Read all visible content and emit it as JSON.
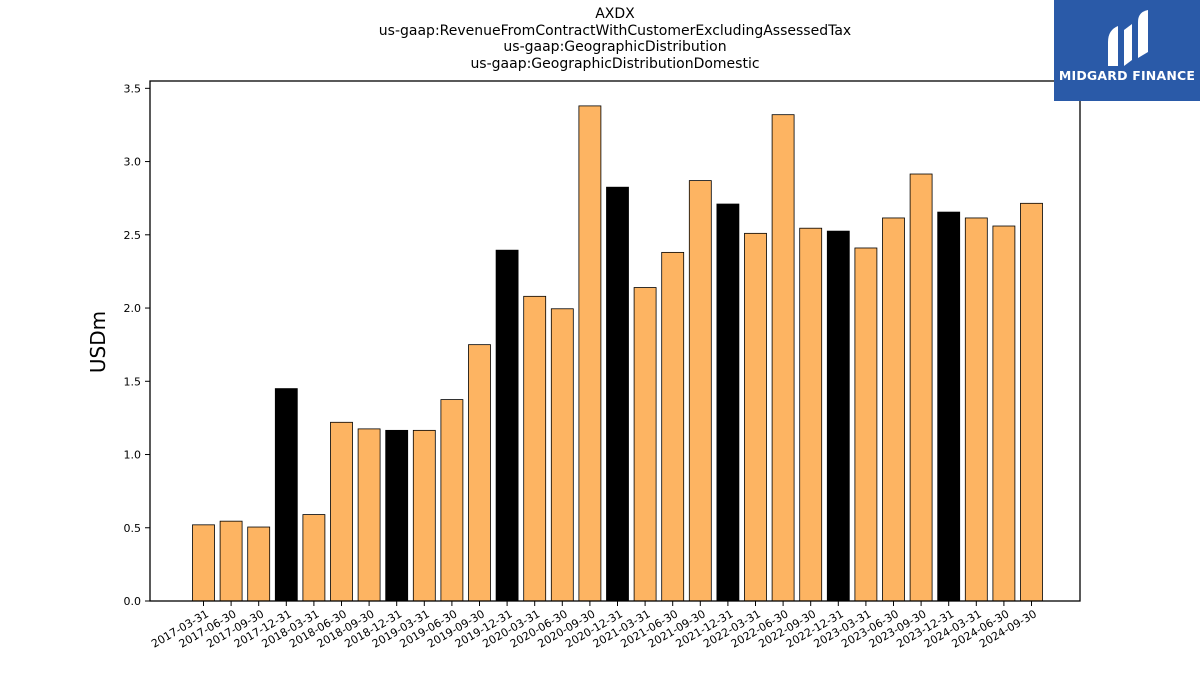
{
  "chart_data": {
    "type": "bar",
    "title": "AXDX",
    "subtitles": [
      "us-gaap:RevenueFromContractWithCustomerExcludingAssessedTax",
      "us-gaap:GeographicDistribution",
      "us-gaap:GeographicDistributionDomestic"
    ],
    "xlabel": "",
    "ylabel": "USDm",
    "ylim": [
      0,
      3.55
    ],
    "yticks": [
      "0.0",
      "0.5",
      "1.0",
      "1.5",
      "2.0",
      "2.5",
      "3.0",
      "3.5"
    ],
    "grid": false,
    "colors": {
      "quarter": "#fdb462",
      "year_end": "#000000",
      "edge": "#000000"
    },
    "categories": [
      "2017-03-31",
      "2017-06-30",
      "2017-09-30",
      "2017-12-31",
      "2018-03-31",
      "2018-06-30",
      "2018-09-30",
      "2018-12-31",
      "2019-03-31",
      "2019-06-30",
      "2019-09-30",
      "2019-12-31",
      "2020-03-31",
      "2020-06-30",
      "2020-09-30",
      "2020-12-31",
      "2021-03-31",
      "2021-06-30",
      "2021-09-30",
      "2021-12-31",
      "2022-03-31",
      "2022-06-30",
      "2022-09-30",
      "2022-12-31",
      "2023-03-31",
      "2023-06-30",
      "2023-09-30",
      "2023-12-31",
      "2024-03-31",
      "2024-06-30",
      "2024-09-30"
    ],
    "values": [
      0.52,
      0.545,
      0.505,
      1.45,
      0.59,
      1.22,
      1.175,
      1.165,
      1.165,
      1.375,
      1.75,
      2.395,
      2.08,
      1.995,
      3.38,
      2.825,
      2.14,
      2.38,
      2.87,
      2.71,
      2.51,
      3.32,
      2.545,
      2.525,
      2.41,
      2.615,
      2.915,
      2.655,
      2.615,
      2.56,
      2.715
    ]
  },
  "logo": {
    "text": "MIDGARD FINANCE"
  }
}
